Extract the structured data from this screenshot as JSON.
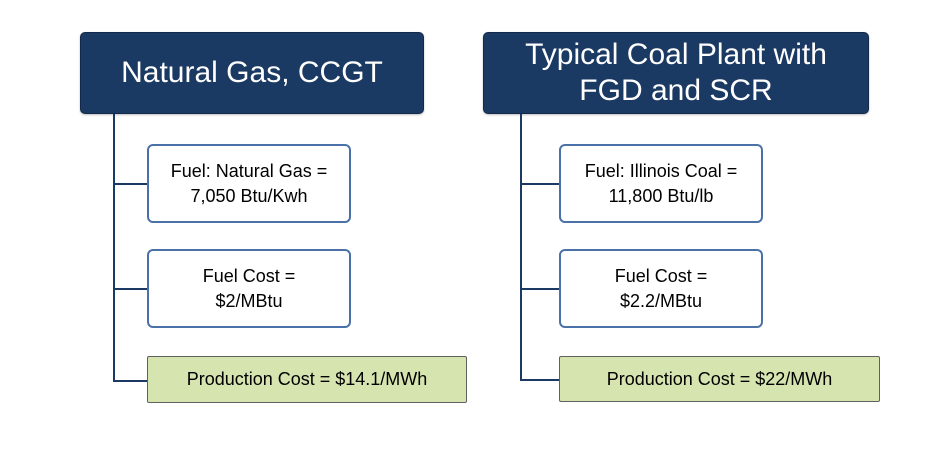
{
  "left": {
    "title": "Natural Gas, CCGT",
    "fuel": {
      "line1": "Fuel: Natural Gas =",
      "line2": "7,050 Btu/Kwh"
    },
    "cost": {
      "line1": "Fuel Cost =",
      "line2": "$2/MBtu"
    },
    "production": "Production Cost = $14.1/MWh"
  },
  "right": {
    "title_line1": "Typical Coal Plant with",
    "title_line2": "FGD and SCR",
    "fuel": {
      "line1": "Fuel: Illinois Coal =",
      "line2": "11,800 Btu/lb"
    },
    "cost": {
      "line1": "Fuel Cost =",
      "line2": "$2.2/MBtu"
    },
    "production": "Production Cost = $22/MWh"
  },
  "colors": {
    "header": "#1b3a63",
    "box_border": "#4a72a8",
    "result_fill": "#d6e4b0"
  }
}
